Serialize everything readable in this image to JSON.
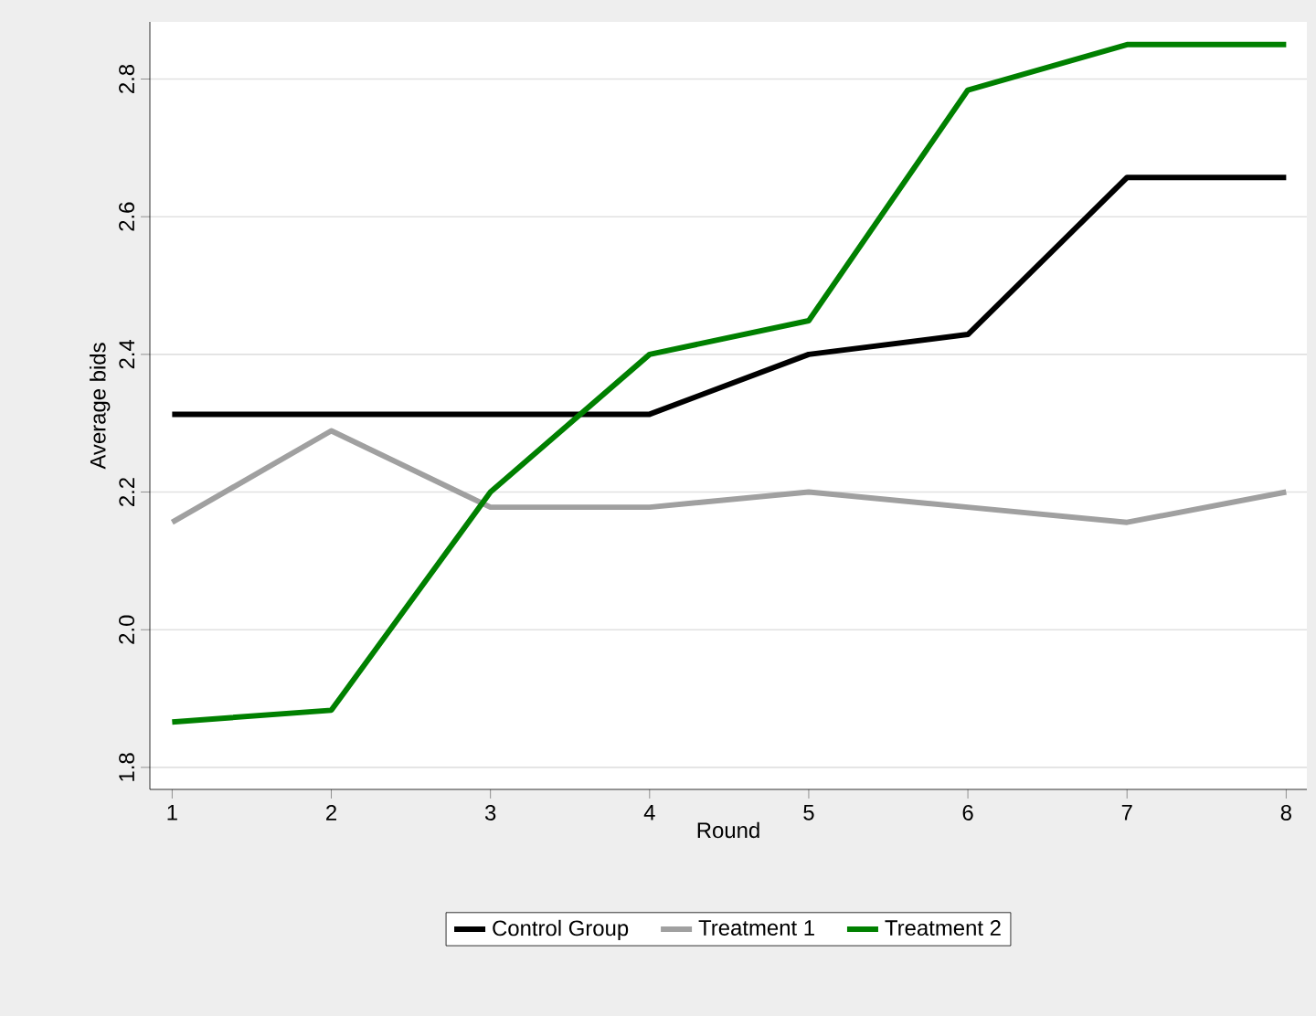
{
  "chart_data": {
    "type": "line",
    "xlabel": "Round",
    "ylabel": "Average bids",
    "x": [
      1,
      2,
      3,
      4,
      5,
      6,
      7,
      8
    ],
    "series": [
      {
        "name": "Control Group",
        "color": "#000000",
        "values": [
          2.313,
          2.313,
          2.313,
          2.313,
          2.4,
          2.429,
          2.657,
          2.657
        ]
      },
      {
        "name": "Treatment 1",
        "color": "#a0a0a0",
        "values": [
          2.156,
          2.289,
          2.178,
          2.178,
          2.2,
          2.178,
          2.156,
          2.2
        ]
      },
      {
        "name": "Treatment 2",
        "color": "#008000",
        "values": [
          1.866,
          1.883,
          2.2,
          2.4,
          2.449,
          2.784,
          2.85,
          2.85
        ]
      }
    ],
    "xlim": [
      0.86,
      8.13
    ],
    "ylim": [
      1.768,
      2.883
    ],
    "xticks": [
      1,
      2,
      3,
      4,
      5,
      6,
      7,
      8
    ],
    "yticks": [
      {
        "value": 1.8,
        "label": "1.8"
      },
      {
        "value": 2.0,
        "label": "2.0"
      },
      {
        "value": 2.2,
        "label": "2.2"
      },
      {
        "value": 2.4,
        "label": "2.4"
      },
      {
        "value": 2.6,
        "label": "2.6"
      },
      {
        "value": 2.8,
        "label": "2.8"
      }
    ],
    "grid": "y",
    "legend": "bottom",
    "line_style": "solid",
    "marker": "none"
  }
}
